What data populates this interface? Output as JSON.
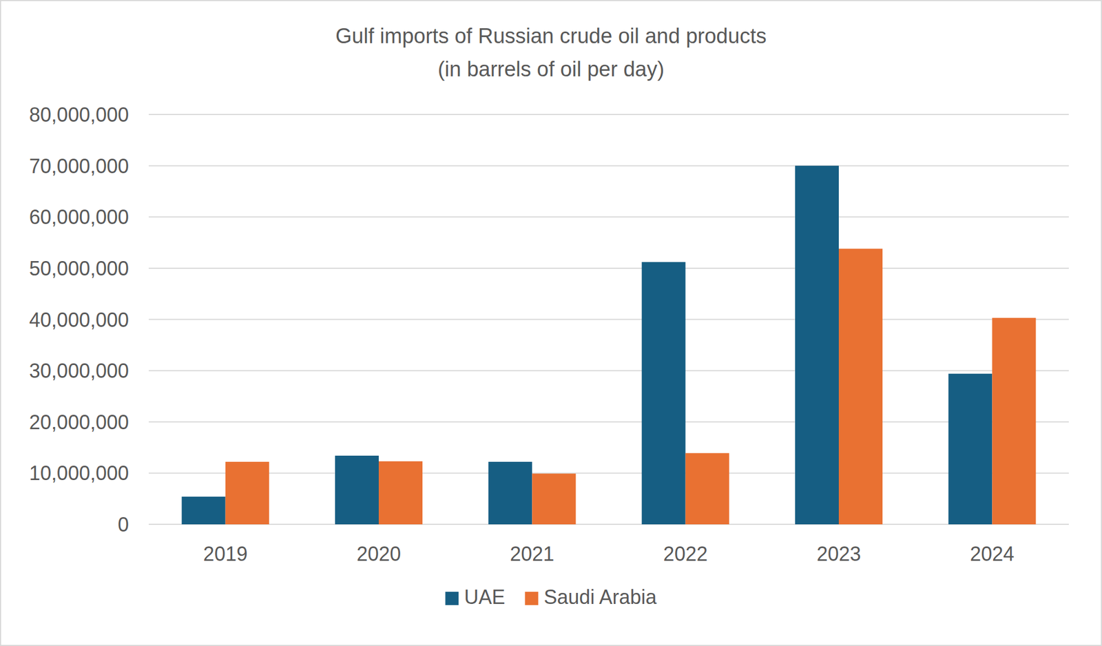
{
  "chart_data": {
    "type": "bar",
    "title": "Gulf imports of Russian crude oil and products",
    "subtitle": "(in barrels of oil per day)",
    "categories": [
      "2019",
      "2020",
      "2021",
      "2022",
      "2023",
      "2024"
    ],
    "series": [
      {
        "name": "UAE",
        "color": "#165e83",
        "values": [
          5400000,
          13400000,
          12200000,
          51200000,
          70000000,
          29400000
        ]
      },
      {
        "name": "Saudi Arabia",
        "color": "#e97132",
        "values": [
          12200000,
          12300000,
          9900000,
          13900000,
          53800000,
          40300000
        ]
      }
    ],
    "ylim": [
      0,
      80000000
    ],
    "yticks": [
      0,
      {
        "value": 10000000,
        "label": "10,000,000"
      },
      {
        "value": 20000000,
        "label": "20,000,000"
      },
      {
        "value": 30000000,
        "label": "30,000,000"
      },
      {
        "value": 40000000,
        "label": "40,000,000"
      },
      {
        "value": 50000000,
        "label": "50,000,000"
      },
      {
        "value": 60000000,
        "label": "60,000,000"
      },
      {
        "value": 70000000,
        "label": "70,000,000"
      },
      {
        "value": 80000000,
        "label": "80,000,000"
      }
    ],
    "grid": true,
    "legend": "bottom"
  }
}
